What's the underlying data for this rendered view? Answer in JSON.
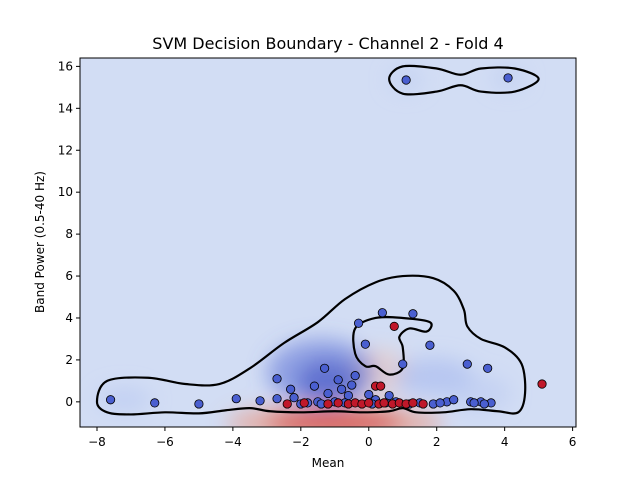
{
  "chart_data": {
    "type": "scatter",
    "title": "SVM Decision Boundary - Channel 2 - Fold 4",
    "xlabel": "Mean",
    "ylabel": "Band Power (0.5-40 Hz)",
    "xlim": [
      -8.5,
      6.1
    ],
    "ylim": [
      -1.2,
      16.4
    ],
    "xticks": [
      -8,
      -6,
      -4,
      -2,
      0,
      2,
      4,
      6
    ],
    "yticks": [
      0,
      2,
      4,
      6,
      8,
      10,
      12,
      14,
      16
    ],
    "xtick_labels": [
      "−8",
      "−6",
      "−4",
      "−2",
      "0",
      "2",
      "4",
      "6"
    ],
    "ytick_labels": [
      "0",
      "2",
      "4",
      "6",
      "8",
      "10",
      "12",
      "14",
      "16"
    ],
    "grid": false,
    "legend": "none",
    "colors": {
      "class_0_point": "#4a5fd0",
      "class_1_point": "#c0182a",
      "background": "#d2ddf4",
      "boundary": "#000000"
    },
    "series": [
      {
        "points": [
          [
            1.1,
            15.35
          ],
          [
            4.1,
            15.45
          ],
          [
            -7.6,
            0.1
          ],
          [
            -6.3,
            -0.05
          ],
          [
            -5.0,
            -0.1
          ],
          [
            -3.9,
            0.15
          ],
          [
            -3.2,
            0.05
          ],
          [
            -2.7,
            1.1
          ],
          [
            -2.7,
            0.15
          ],
          [
            -2.3,
            0.6
          ],
          [
            -2.2,
            0.2
          ],
          [
            -2.0,
            -0.1
          ],
          [
            -1.6,
            0.75
          ],
          [
            -1.3,
            1.6
          ],
          [
            -1.2,
            0.4
          ],
          [
            -1.0,
            0.0
          ],
          [
            -0.9,
            1.05
          ],
          [
            -0.8,
            0.6
          ],
          [
            -0.6,
            0.3
          ],
          [
            -0.5,
            0.8
          ],
          [
            -0.4,
            1.25
          ],
          [
            -0.3,
            3.75
          ],
          [
            -0.1,
            2.75
          ],
          [
            0.0,
            0.35
          ],
          [
            0.2,
            0.1
          ],
          [
            0.4,
            4.25
          ],
          [
            0.6,
            0.3
          ],
          [
            1.0,
            1.8
          ],
          [
            1.3,
            4.2
          ],
          [
            1.8,
            2.7
          ],
          [
            2.3,
            0.0
          ],
          [
            2.5,
            0.1
          ],
          [
            2.9,
            1.8
          ],
          [
            3.0,
            0.0
          ],
          [
            3.3,
            0.0
          ],
          [
            3.5,
            1.6
          ],
          [
            3.6,
            -0.05
          ],
          [
            -1.8,
            -0.05
          ],
          [
            -1.5,
            0.0
          ],
          [
            -1.4,
            -0.1
          ],
          [
            -0.7,
            -0.05
          ],
          [
            0.1,
            -0.1
          ],
          [
            0.5,
            -0.05
          ],
          [
            0.8,
            0.0
          ],
          [
            1.2,
            -0.1
          ],
          [
            1.5,
            -0.05
          ],
          [
            1.9,
            -0.1
          ],
          [
            2.1,
            -0.05
          ],
          [
            3.1,
            -0.05
          ],
          [
            3.4,
            -0.1
          ]
        ]
      },
      {
        "points": [
          [
            0.75,
            3.6
          ],
          [
            5.1,
            0.85
          ],
          [
            0.2,
            0.75
          ],
          [
            0.35,
            0.75
          ],
          [
            -2.4,
            -0.1
          ],
          [
            -1.9,
            -0.05
          ],
          [
            -1.2,
            -0.1
          ],
          [
            -0.9,
            -0.05
          ],
          [
            -0.6,
            -0.1
          ],
          [
            -0.4,
            -0.05
          ],
          [
            -0.2,
            -0.1
          ],
          [
            0.0,
            -0.05
          ],
          [
            0.3,
            -0.1
          ],
          [
            0.45,
            -0.05
          ],
          [
            0.7,
            -0.1
          ],
          [
            0.9,
            -0.05
          ],
          [
            1.1,
            -0.1
          ],
          [
            1.3,
            -0.05
          ],
          [
            1.6,
            -0.1
          ]
        ]
      }
    ],
    "contours": [
      {
        "points": [
          [
            0.6,
            15.4
          ],
          [
            1.0,
            16.0
          ],
          [
            2.0,
            15.9
          ],
          [
            2.7,
            15.6
          ],
          [
            3.3,
            15.9
          ],
          [
            4.3,
            15.9
          ],
          [
            5.0,
            15.4
          ],
          [
            4.3,
            14.8
          ],
          [
            3.3,
            14.8
          ],
          [
            2.7,
            15.1
          ],
          [
            2.0,
            14.8
          ],
          [
            1.0,
            14.7
          ]
        ]
      },
      {
        "points": [
          [
            -8.0,
            0.0
          ],
          [
            -7.7,
            1.0
          ],
          [
            -6.5,
            1.15
          ],
          [
            -5.4,
            0.85
          ],
          [
            -4.4,
            0.85
          ],
          [
            -3.5,
            1.6
          ],
          [
            -2.5,
            2.8
          ],
          [
            -1.5,
            3.8
          ],
          [
            -0.7,
            4.9
          ],
          [
            0.2,
            5.7
          ],
          [
            1.0,
            6.0
          ],
          [
            1.9,
            5.9
          ],
          [
            2.5,
            5.3
          ],
          [
            2.8,
            4.4
          ],
          [
            2.9,
            3.6
          ],
          [
            3.3,
            3.0
          ],
          [
            4.0,
            2.6
          ],
          [
            4.5,
            1.8
          ],
          [
            4.6,
            0.4
          ],
          [
            4.4,
            -0.5
          ],
          [
            3.8,
            -0.45
          ],
          [
            3.0,
            -0.35
          ],
          [
            2.2,
            -0.5
          ],
          [
            1.4,
            -0.5
          ],
          [
            1.0,
            -0.3
          ],
          [
            0.6,
            -0.45
          ],
          [
            -0.2,
            -0.5
          ],
          [
            -1.0,
            -0.45
          ],
          [
            -2.0,
            -0.5
          ],
          [
            -2.9,
            -0.45
          ],
          [
            -3.5,
            -0.3
          ],
          [
            -4.2,
            -0.4
          ],
          [
            -5.0,
            -0.55
          ],
          [
            -6.0,
            -0.5
          ],
          [
            -7.0,
            -0.6
          ],
          [
            -7.7,
            -0.5
          ]
        ]
      },
      {
        "points": [
          [
            -0.4,
            2.3
          ],
          [
            -0.4,
            3.5
          ],
          [
            0.2,
            4.0
          ],
          [
            1.0,
            4.0
          ],
          [
            1.8,
            3.8
          ],
          [
            1.7,
            3.35
          ],
          [
            1.2,
            3.5
          ],
          [
            0.9,
            3.1
          ],
          [
            1.0,
            2.6
          ],
          [
            1.0,
            1.6
          ],
          [
            0.6,
            1.3
          ],
          [
            0.2,
            1.7
          ],
          [
            -0.1,
            1.7
          ]
        ]
      }
    ],
    "density": [
      {
        "x": -1.0,
        "y": -1.0,
        "rx": 2.0,
        "ry": 0.55,
        "color": "#b40426",
        "opacity": 0.85
      },
      {
        "x": -1.0,
        "y": -1.0,
        "rx": 3.2,
        "ry": 0.9,
        "color": "#f08a6c",
        "opacity": 0.55
      },
      {
        "x": 0.3,
        "y": 1.4,
        "rx": 0.9,
        "ry": 1.1,
        "color": "#f6bfa6",
        "opacity": 0.45
      },
      {
        "x": -1.4,
        "y": 1.4,
        "rx": 1.6,
        "ry": 1.6,
        "color": "#5a6fd6",
        "opacity": 0.55
      },
      {
        "x": -1.2,
        "y": 1.0,
        "rx": 0.9,
        "ry": 1.0,
        "color": "#3b4cc0",
        "opacity": 0.55
      },
      {
        "x": 1.9,
        "y": 1.2,
        "rx": 1.2,
        "ry": 0.9,
        "color": "#a5b8ee",
        "opacity": 0.6
      },
      {
        "x": -7.2,
        "y": 0.1,
        "rx": 0.8,
        "ry": 0.6,
        "color": "#b8c8f2",
        "opacity": 0.6
      },
      {
        "x": 3.2,
        "y": 0.4,
        "rx": 1.0,
        "ry": 0.9,
        "color": "#b8c8f2",
        "opacity": 0.5
      },
      {
        "x": 1.1,
        "y": 15.35,
        "rx": 0.5,
        "ry": 0.55,
        "color": "#bccbf2",
        "opacity": 0.6
      },
      {
        "x": 4.1,
        "y": 15.45,
        "rx": 0.5,
        "ry": 0.55,
        "color": "#bccbf2",
        "opacity": 0.6
      }
    ]
  }
}
